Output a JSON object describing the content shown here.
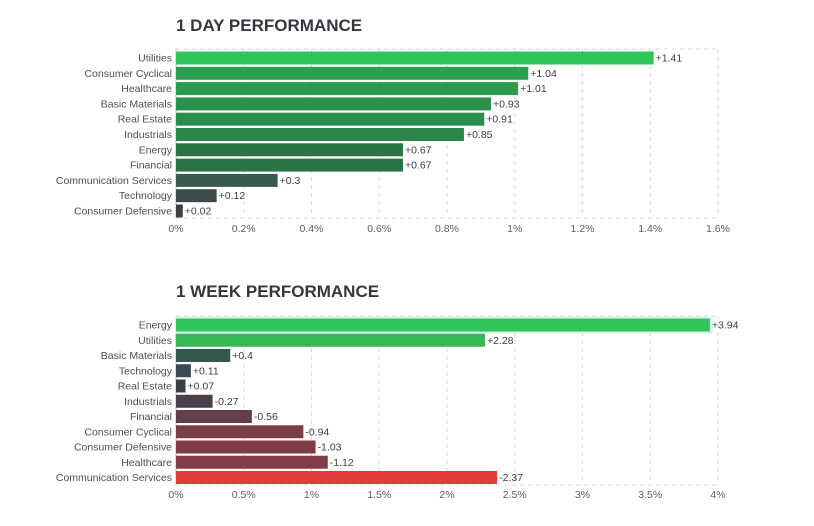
{
  "chart_data": [
    {
      "type": "bar",
      "orientation": "horizontal",
      "title": "1 DAY PERFORMANCE",
      "categories": [
        "Utilities",
        "Consumer Cyclical",
        "Healthcare",
        "Basic Materials",
        "Real Estate",
        "Industrials",
        "Energy",
        "Financial",
        "Communication Services",
        "Technology",
        "Consumer Defensive"
      ],
      "values": [
        1.41,
        1.04,
        1.01,
        0.93,
        0.91,
        0.85,
        0.67,
        0.67,
        0.3,
        0.12,
        0.02
      ],
      "value_labels": [
        "+1.41",
        "+1.04",
        "+1.01",
        "+0.93",
        "+0.91",
        "+0.85",
        "+0.67",
        "+0.67",
        "+0.3",
        "+0.12",
        "+0.02"
      ],
      "colors": [
        "#31c45a",
        "#2a9e4f",
        "#2a9a4e",
        "#2a914c",
        "#2a8d4b",
        "#2a864a",
        "#2a7448",
        "#2a7448",
        "#3a5a4e",
        "#3d4a4f",
        "#3a3f48"
      ],
      "xticks": [
        "0%",
        "0.2%",
        "0.4%",
        "0.6%",
        "0.8%",
        "1%",
        "1.2%",
        "1.4%",
        "1.6%"
      ],
      "xlim": [
        0,
        1.6
      ],
      "xlabel": "",
      "ylabel": "",
      "grid": true
    },
    {
      "type": "bar",
      "orientation": "horizontal",
      "title": "1 WEEK PERFORMANCE",
      "categories": [
        "Energy",
        "Utilities",
        "Basic Materials",
        "Technology",
        "Real Estate",
        "Industrials",
        "Financial",
        "Consumer Cyclical",
        "Consumer Defensive",
        "Healthcare",
        "Communication Services"
      ],
      "values": [
        3.94,
        2.28,
        0.4,
        0.11,
        0.07,
        -0.27,
        -0.56,
        -0.94,
        -1.03,
        -1.12,
        -2.37
      ],
      "value_labels": [
        "+3.94",
        "+2.28",
        "+0.4",
        "+0.11",
        "+0.07",
        "-0.27",
        "-0.56",
        "-0.94",
        "-1.03",
        "-1.12",
        "-2.37"
      ],
      "colors": [
        "#31c45a",
        "#34b856",
        "#35574d",
        "#3b4a52",
        "#393f47",
        "#4a3f4a",
        "#643f4a",
        "#7b3d46",
        "#7f3c46",
        "#843b45",
        "#e03c3c"
      ],
      "xticks": [
        "0%",
        "0.5%",
        "1%",
        "1.5%",
        "2%",
        "2.5%",
        "3%",
        "3.5%",
        "4%"
      ],
      "xlim": [
        0,
        4
      ],
      "xlabel": "",
      "ylabel": "",
      "grid": true
    }
  ]
}
